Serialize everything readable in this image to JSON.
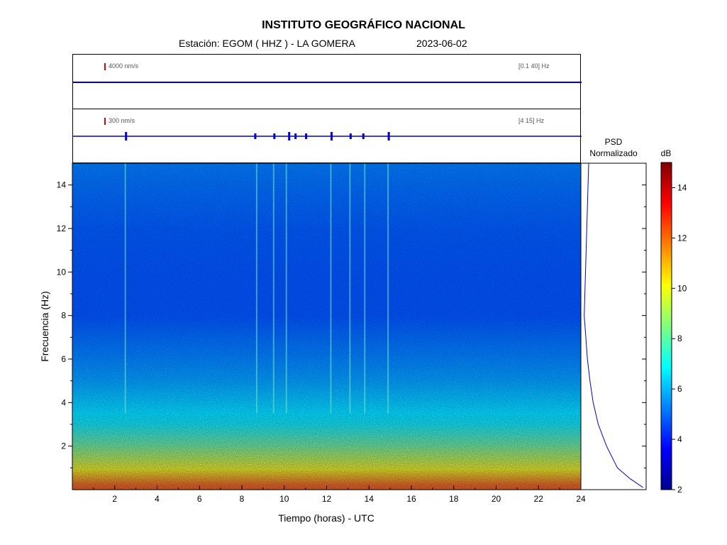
{
  "header": {
    "title": "INSTITUTO GEOGRÁFICO NACIONAL",
    "station": "Estación:  EGOM ( HHZ ) - LA GOMERA",
    "date": "2023-06-02"
  },
  "traces": [
    {
      "scale_label": "4000 nm/s",
      "band_label": "[0.1 40] Hz"
    },
    {
      "scale_label": "300 nm/s",
      "band_label": "[4 15] Hz"
    }
  ],
  "psd": {
    "title_line1": "PSD",
    "title_line2": "Normalizado"
  },
  "colorbar": {
    "unit": "dB",
    "min": 2,
    "max": 15,
    "ticks": [
      "2",
      "4",
      "6",
      "8",
      "10",
      "12",
      "14"
    ]
  },
  "colors": {
    "trace": "#0000cc",
    "scale_mark": "#e00000",
    "psd_line": "#0000cc"
  },
  "chart_data": {
    "type": "heatmap",
    "title": "INSTITUTO GEOGRÁFICO NACIONAL",
    "xlabel": "Tiempo (horas) - UTC",
    "ylabel": "Frecuencia  (Hz)",
    "xlim": [
      0,
      24
    ],
    "ylim": [
      0,
      15
    ],
    "x_ticks": [
      "2",
      "4",
      "6",
      "8",
      "10",
      "12",
      "14",
      "16",
      "18",
      "20",
      "22",
      "24"
    ],
    "y_ticks": [
      "2",
      "4",
      "6",
      "8",
      "10",
      "12",
      "14"
    ],
    "colorscale": "jet",
    "value_range_db": [
      2,
      15
    ],
    "band_profile_db": [
      {
        "freq": 0.2,
        "db": 12.0
      },
      {
        "freq": 0.6,
        "db": 11.0
      },
      {
        "freq": 1.0,
        "db": 10.0
      },
      {
        "freq": 1.5,
        "db": 9.3
      },
      {
        "freq": 2.0,
        "db": 8.5
      },
      {
        "freq": 3.0,
        "db": 7.2
      },
      {
        "freq": 4.0,
        "db": 6.6
      },
      {
        "freq": 5.0,
        "db": 6.0
      },
      {
        "freq": 6.0,
        "db": 5.6
      },
      {
        "freq": 8.0,
        "db": 4.9
      },
      {
        "freq": 10.0,
        "db": 4.9
      },
      {
        "freq": 12.0,
        "db": 5.0
      },
      {
        "freq": 14.0,
        "db": 5.3
      },
      {
        "freq": 15.0,
        "db": 5.5
      }
    ],
    "vertical_event_lines_hours": [
      2.5,
      8.7,
      9.5,
      10.1,
      12.2,
      13.1,
      13.8,
      14.9
    ],
    "psd_curve": [
      {
        "freq": 0.1,
        "norm": 0.95
      },
      {
        "freq": 0.5,
        "norm": 0.75
      },
      {
        "freq": 1.0,
        "norm": 0.55
      },
      {
        "freq": 2.0,
        "norm": 0.38
      },
      {
        "freq": 3.0,
        "norm": 0.25
      },
      {
        "freq": 4.0,
        "norm": 0.17
      },
      {
        "freq": 5.0,
        "norm": 0.12
      },
      {
        "freq": 6.0,
        "norm": 0.08
      },
      {
        "freq": 8.0,
        "norm": 0.03
      },
      {
        "freq": 10.0,
        "norm": 0.05
      },
      {
        "freq": 12.0,
        "norm": 0.07
      },
      {
        "freq": 14.0,
        "norm": 0.09
      },
      {
        "freq": 15.0,
        "norm": 0.1
      }
    ],
    "trace2_bursts_hours": [
      2.5,
      8.6,
      9.5,
      10.2,
      10.5,
      11.0,
      12.2,
      13.1,
      13.7,
      14.9
    ]
  }
}
